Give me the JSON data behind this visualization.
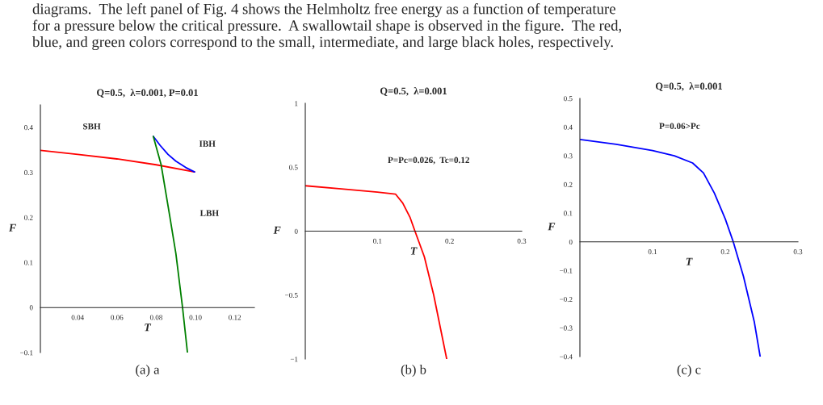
{
  "chart_data": [
    {
      "type": "line",
      "title": "Q=0.5,  λ=0.001, P=0.01",
      "xlabel": "T",
      "ylabel": "F",
      "xlim": [
        0.021,
        0.13
      ],
      "xticks": [
        {
          "value": 0.04,
          "label": "0.04"
        },
        {
          "value": 0.06,
          "label": "0.06"
        },
        {
          "value": 0.08,
          "label": "0.08"
        },
        {
          "value": 0.1,
          "label": "0.10"
        },
        {
          "value": 0.12,
          "label": "0.12"
        }
      ],
      "ylim": [
        -0.1,
        0.45
      ],
      "yticks": [
        {
          "value": -0.1,
          "label": "−0.1"
        },
        0,
        0.1,
        0.2,
        0.3,
        0.4
      ],
      "series": [
        {
          "color": "#ff0000",
          "x": [
            0.021,
            0.04,
            0.06,
            0.08,
            0.0995
          ],
          "values": [
            0.349,
            0.34,
            0.33,
            0.317,
            0.301
          ]
        },
        {
          "color": "#0000ff",
          "x": [
            0.0785,
            0.082,
            0.086,
            0.09,
            0.095,
            0.0995
          ],
          "values": [
            0.38,
            0.36,
            0.34,
            0.325,
            0.311,
            0.301
          ]
        },
        {
          "color": "#008000",
          "x": [
            0.0785,
            0.0825,
            0.087,
            0.09,
            0.0934,
            0.0959
          ],
          "values": [
            0.38,
            0.317,
            0.2,
            0.12,
            0,
            -0.1
          ]
        }
      ],
      "annotations": [
        "diagrams.  The left panel of Fig. 4 shows the Helmholtz free energy as a function of temperature\nfor a pressure below the critical pressure.  A swallowtail shape is observed in the figure.  The red,\nblue, and green colors correspond to the small, intermediate, and large black holes, respectively.",
        "SBH",
        "IBH",
        "LBH",
        "(a) a"
      ]
    },
    {
      "type": "line",
      "title": "Q=0.5,  λ=0.001",
      "xlabel": "T",
      "ylabel": "F",
      "xlim": [
        0,
        0.3
      ],
      "xticks": [
        0.1,
        0.2,
        0.3
      ],
      "ylim": [
        -1,
        1
      ],
      "yticks": [
        {
          "value": -1,
          "label": "−1"
        },
        {
          "value": -0.5,
          "label": "−0.5"
        },
        0,
        0.5,
        1
      ],
      "series": [
        {
          "color": "#ff0000",
          "x": [
            0,
            0.05,
            0.1,
            0.125,
            0.135,
            0.145,
            0.152,
            0.165,
            0.178,
            0.196
          ],
          "values": [
            0.355,
            0.33,
            0.305,
            0.29,
            0.22,
            0.11,
            0,
            -0.2,
            -0.5,
            -1.0
          ]
        }
      ],
      "annotations": [
        "P=Pc=0.026,  Tc=0.12",
        "(b) b"
      ]
    },
    {
      "type": "line",
      "title": "Q=0.5,  λ=0.001",
      "xlabel": "T",
      "ylabel": "F",
      "xlim": [
        0,
        0.3
      ],
      "xticks": [
        0.1,
        0.2,
        0.3
      ],
      "ylim": [
        -0.4,
        0.5
      ],
      "yticks": [
        {
          "value": -0.4,
          "label": "−0.4"
        },
        {
          "value": -0.3,
          "label": "−0.3"
        },
        {
          "value": -0.2,
          "label": "−0.2"
        },
        {
          "value": -0.1,
          "label": "−0.1"
        },
        0,
        0.1,
        0.2,
        0.3,
        0.4,
        0.5
      ],
      "series": [
        {
          "color": "#0000ff",
          "x": [
            0,
            0.05,
            0.1,
            0.13,
            0.155,
            0.17,
            0.185,
            0.2,
            0.211,
            0.225,
            0.24,
            0.248
          ],
          "values": [
            0.357,
            0.34,
            0.318,
            0.3,
            0.275,
            0.24,
            0.17,
            0.08,
            0,
            -0.12,
            -0.28,
            -0.4
          ]
        }
      ],
      "annotations": [
        "P=0.06>Pc",
        "(c) c"
      ]
    }
  ]
}
